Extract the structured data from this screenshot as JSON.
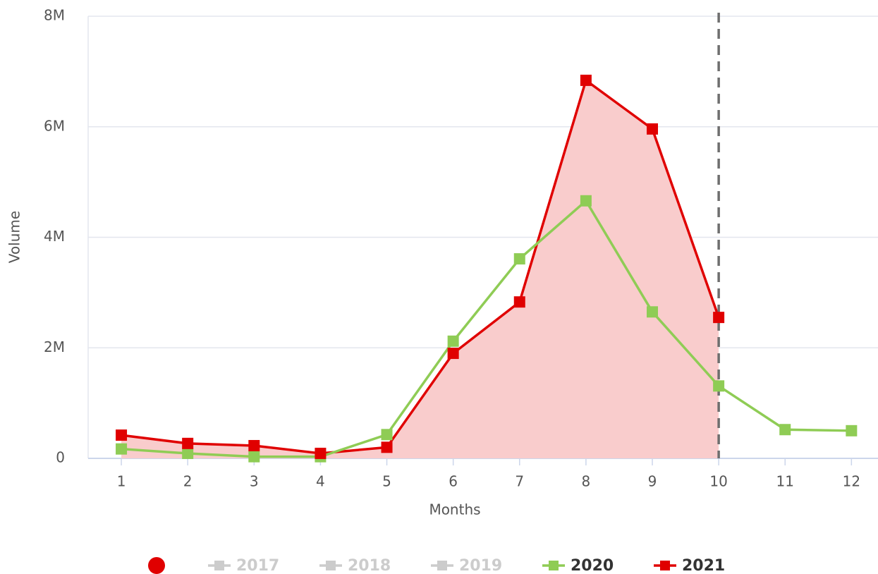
{
  "chart_data": {
    "type": "line",
    "x_label": "Months",
    "y_label": "Volume",
    "x": [
      1,
      2,
      3,
      4,
      5,
      6,
      7,
      8,
      9,
      10,
      11,
      12
    ],
    "xlim": [
      0.5,
      12.4
    ],
    "xticks": [
      1,
      2,
      3,
      4,
      5,
      6,
      7,
      8,
      9,
      10,
      11,
      12
    ],
    "ylim": [
      0,
      8000000
    ],
    "yticks": [
      0,
      {
        "value": 2000000,
        "label": "2M"
      },
      {
        "value": 4000000,
        "label": "4M"
      },
      {
        "value": 6000000,
        "label": "6M"
      },
      {
        "value": 8000000,
        "label": "8M"
      }
    ],
    "grid": true,
    "vline": 10,
    "series": [
      {
        "name": "2017",
        "color": "#cccccc",
        "visible": false,
        "values": [
          null,
          null,
          null,
          null,
          null,
          null,
          null,
          null,
          null,
          null,
          null,
          null
        ]
      },
      {
        "name": "2018",
        "color": "#cccccc",
        "visible": false,
        "values": [
          null,
          null,
          null,
          null,
          null,
          null,
          null,
          null,
          null,
          null,
          null,
          null
        ]
      },
      {
        "name": "2019",
        "color": "#cccccc",
        "visible": false,
        "values": [
          null,
          null,
          null,
          null,
          null,
          null,
          null,
          null,
          null,
          null,
          null,
          null
        ]
      },
      {
        "name": "2020",
        "color": "#8fcc55",
        "visible": true,
        "values": [
          170000,
          90000,
          30000,
          30000,
          430000,
          2120000,
          3610000,
          4660000,
          2650000,
          1310000,
          520000,
          500000
        ]
      },
      {
        "name": "2021",
        "color": "#e00000",
        "visible": true,
        "fill": "#f9cccc",
        "values": [
          420000,
          270000,
          230000,
          90000,
          200000,
          1900000,
          2830000,
          6840000,
          5960000,
          2550000,
          null,
          null
        ]
      }
    ]
  }
}
